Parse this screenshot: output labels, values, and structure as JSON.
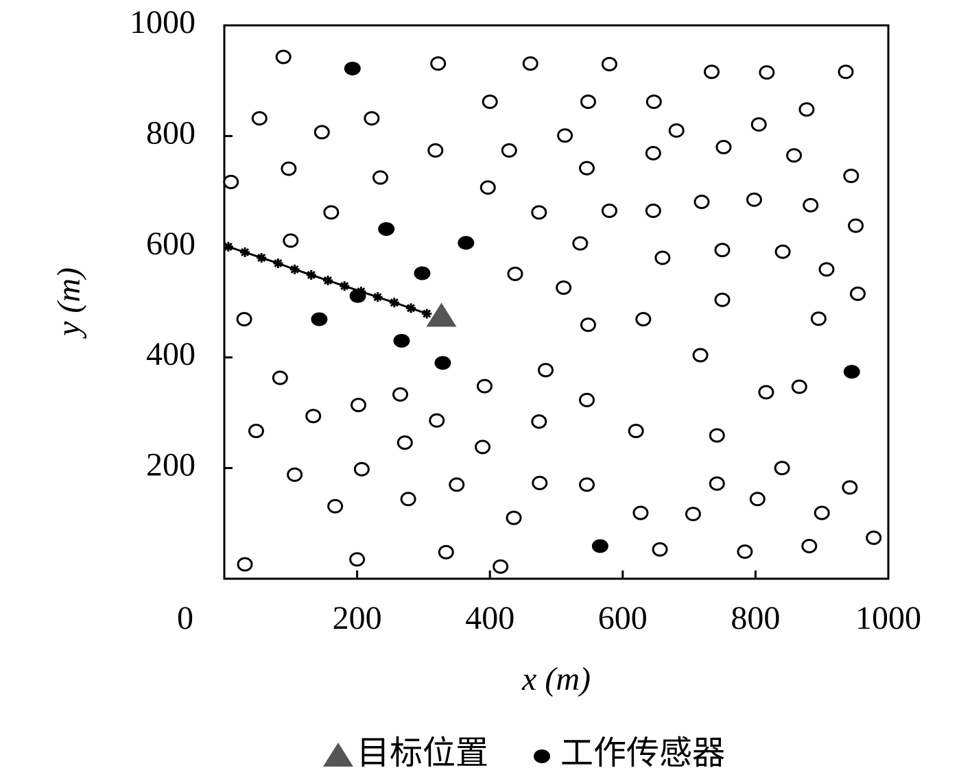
{
  "chart_data": {
    "type": "scatter",
    "xlabel": "x (m)",
    "ylabel": "y (m)",
    "xlim": [
      0,
      1000
    ],
    "ylim": [
      0,
      1000
    ],
    "xticks": [
      0,
      200,
      400,
      600,
      800,
      1000
    ],
    "yticks": [
      200,
      400,
      600,
      800,
      1000
    ],
    "series": [
      {
        "marker": "open-circle",
        "color": "#000000",
        "x": [
          89,
          322,
          461,
          580,
          734,
          817,
          936,
          53,
          222,
          400,
          548,
          647,
          147,
          318,
          429,
          513,
          681,
          805,
          877,
          646,
          752,
          858,
          10,
          97,
          235,
          397,
          546,
          944,
          161,
          474,
          580,
          646,
          719,
          798,
          883,
          100,
          536,
          951,
          660,
          750,
          841,
          907,
          438,
          511,
          30,
          548,
          631,
          750,
          954,
          895,
          717,
          84,
          484,
          392,
          265,
          134,
          202,
          320,
          546,
          816,
          866,
          48,
          272,
          474,
          620,
          742,
          389,
          106,
          207,
          840,
          350,
          475,
          546,
          742,
          942,
          167,
          277,
          436,
          627,
          706,
          803,
          900,
          978,
          31,
          200,
          334,
          416,
          656,
          784,
          881
        ],
        "y": [
          943,
          931,
          931,
          930,
          916,
          915,
          916,
          832,
          832,
          862,
          862,
          862,
          807,
          774,
          774,
          801,
          810,
          821,
          848,
          769,
          780,
          765,
          717,
          741,
          725,
          707,
          742,
          728,
          662,
          662,
          665,
          665,
          681,
          685,
          675,
          611,
          606,
          638,
          580,
          594,
          591,
          559,
          551,
          526,
          469,
          459,
          469,
          504,
          515,
          470,
          404,
          363,
          377,
          348,
          333,
          294,
          314,
          286,
          323,
          337,
          347,
          267,
          246,
          284,
          267,
          259,
          238,
          188,
          198,
          200,
          170,
          173,
          170,
          172,
          165,
          131,
          144,
          110,
          119,
          117,
          144,
          119,
          74,
          26,
          35,
          48,
          22,
          53,
          49,
          59
        ]
      },
      {
        "marker": "triangle",
        "name": "目标位置",
        "color": "#555555",
        "x": [
          327
        ],
        "y": [
          474
        ]
      },
      {
        "marker": "filled-circle",
        "name": "工作传感器",
        "color": "#000000",
        "x": [
          193,
          244,
          364,
          298,
          201,
          143,
          267,
          329,
          945,
          566
        ],
        "y": [
          922,
          632,
          607,
          552,
          511,
          469,
          430,
          390,
          374,
          59
        ]
      },
      {
        "marker": "star-line",
        "color": "#000000",
        "x": [
          6,
          31,
          56,
          81,
          106,
          131,
          156,
          181,
          206,
          231,
          256,
          281,
          305
        ],
        "y": [
          600,
          590,
          580,
          570,
          559,
          549,
          539,
          529,
          519,
          509,
          499,
          489,
          479
        ]
      }
    ]
  }
}
